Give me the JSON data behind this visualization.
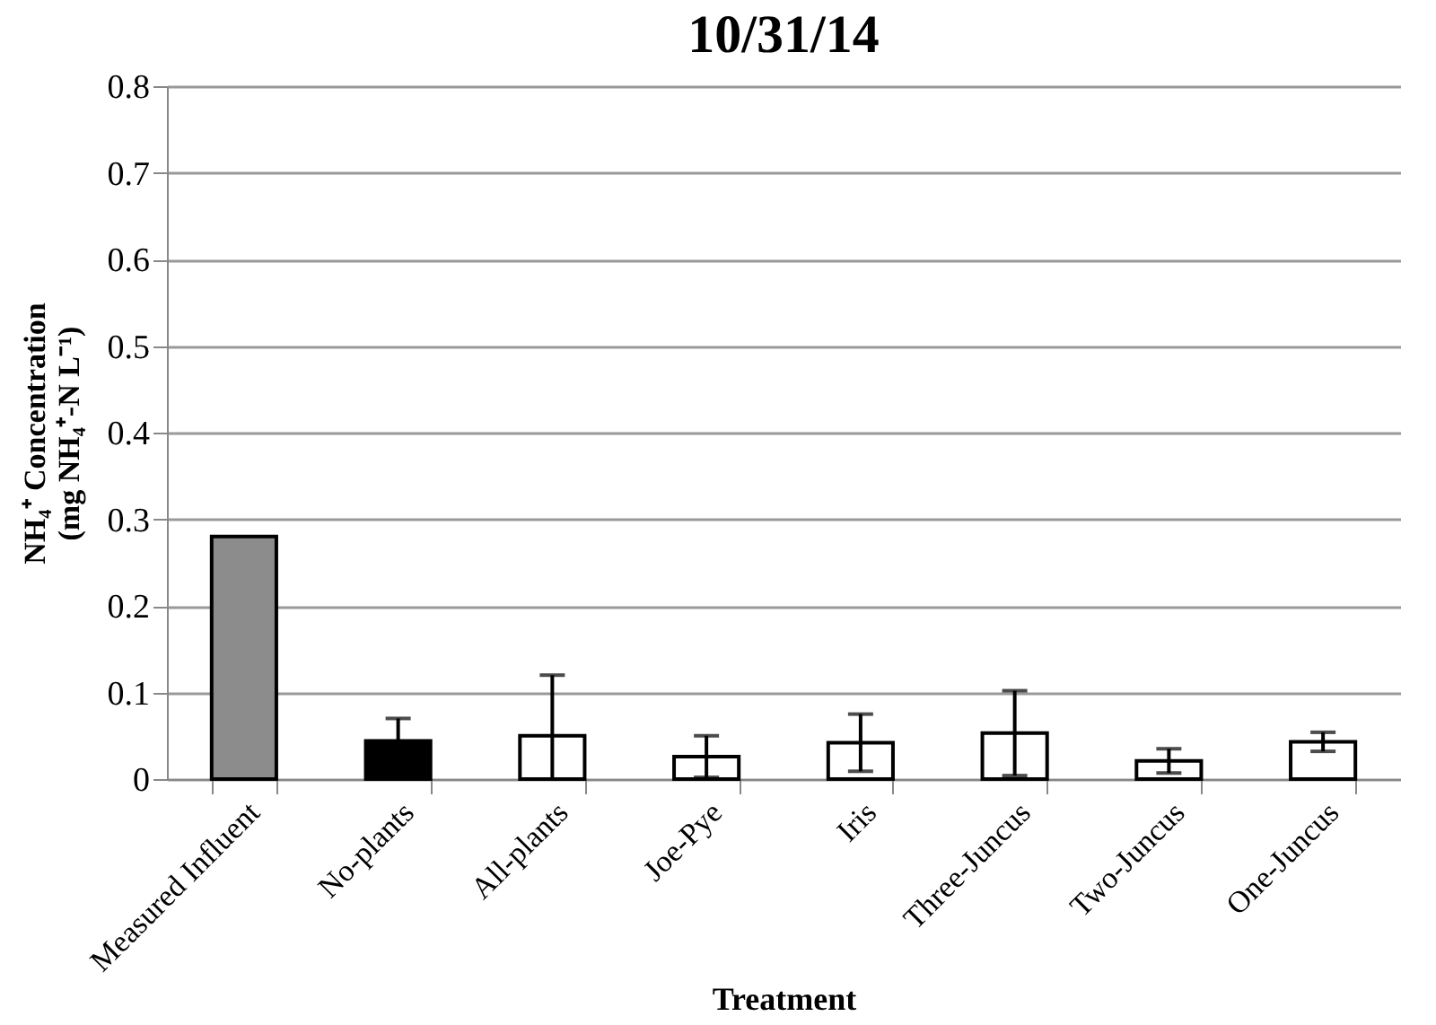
{
  "chart_data": {
    "type": "bar",
    "title": "10/31/14",
    "xlabel": "Treatment",
    "ylabel": "NH₄⁺ Concentration (mg NH₄⁺-N L⁻¹)",
    "categories": [
      "Measured Influent",
      "No-plants",
      "All-plants",
      "Joe-Pye",
      "Iris",
      "Three-Juncus",
      "Two-Juncus",
      "One-Juncus"
    ],
    "values": [
      0.28,
      0.044,
      0.05,
      0.026,
      0.042,
      0.053,
      0.021,
      0.043
    ],
    "errors": [
      null,
      0.026,
      [
        0,
        0.12
      ],
      0.024,
      0.033,
      0.049,
      0.014,
      0.011
    ],
    "colors": [
      "#8c8c8c",
      "#000000",
      "#ffffff",
      "#ffffff",
      "#ffffff",
      "#ffffff",
      "#ffffff",
      "#ffffff"
    ],
    "ylim": [
      0,
      0.8
    ],
    "yticks": [
      0,
      0.1,
      0.2,
      0.3,
      0.4,
      0.5,
      0.6,
      0.7,
      0.8
    ],
    "grid": "y",
    "legend": false
  }
}
